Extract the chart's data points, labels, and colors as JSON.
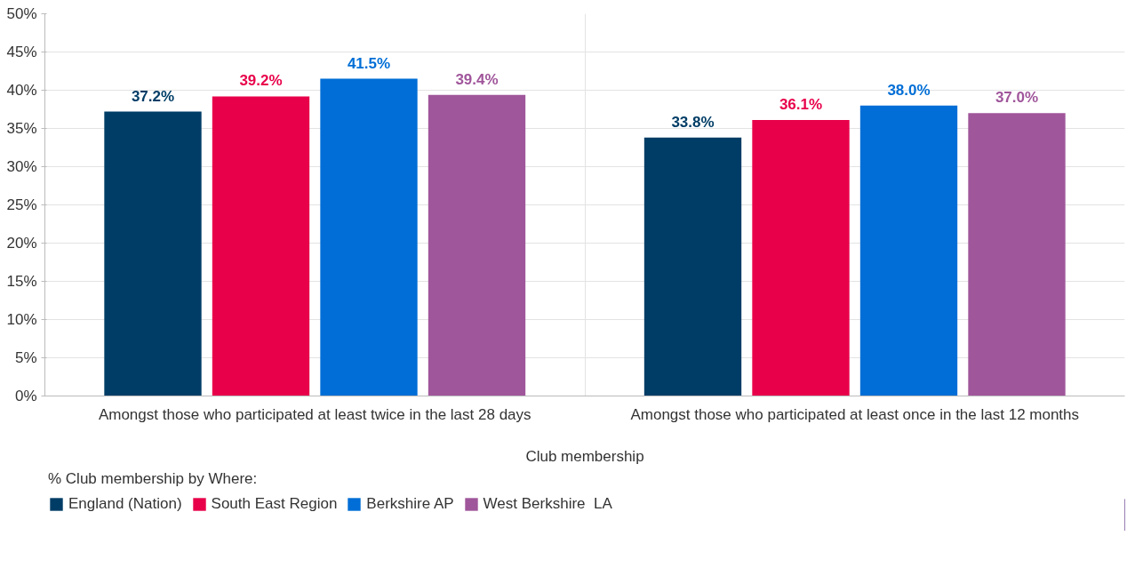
{
  "chart_data": {
    "type": "bar",
    "categories": [
      "Amongst those who participated at least twice in the last 28 days",
      "Amongst those who participated at least once in the last 12 months"
    ],
    "xlabel": "Club membership",
    "legend_title": "% Club membership by Where:",
    "series": [
      {
        "name": "England (Nation)",
        "color": "#003d66",
        "values": [
          37.2,
          33.8
        ],
        "value_labels": [
          "37.2%",
          "33.8%"
        ]
      },
      {
        "name": "South East Region",
        "color": "#e8004a",
        "values": [
          39.2,
          36.1
        ],
        "value_labels": [
          "39.2%",
          "36.1%"
        ]
      },
      {
        "name": "Berkshire AP",
        "color": "#006ed6",
        "values": [
          41.5,
          38.0
        ],
        "value_labels": [
          "41.5%",
          "38.0%"
        ]
      },
      {
        "name": "West Berkshire  LA",
        "color": "#a0569b",
        "values": [
          39.4,
          37.0
        ],
        "value_labels": [
          "39.4%",
          "37.0%"
        ]
      }
    ],
    "ylim": [
      0,
      50
    ],
    "yticks": [
      {
        "value": 0,
        "label": "0%"
      },
      {
        "value": 5,
        "label": "5%"
      },
      {
        "value": 10,
        "label": "10%"
      },
      {
        "value": 15,
        "label": "15%"
      },
      {
        "value": 20,
        "label": "20%"
      },
      {
        "value": 25,
        "label": "25%"
      },
      {
        "value": 30,
        "label": "30%"
      },
      {
        "value": 35,
        "label": "35%"
      },
      {
        "value": 40,
        "label": "40%"
      },
      {
        "value": 45,
        "label": "45%"
      },
      {
        "value": 50,
        "label": "50%"
      }
    ],
    "grid": true,
    "legend": "bottom"
  }
}
